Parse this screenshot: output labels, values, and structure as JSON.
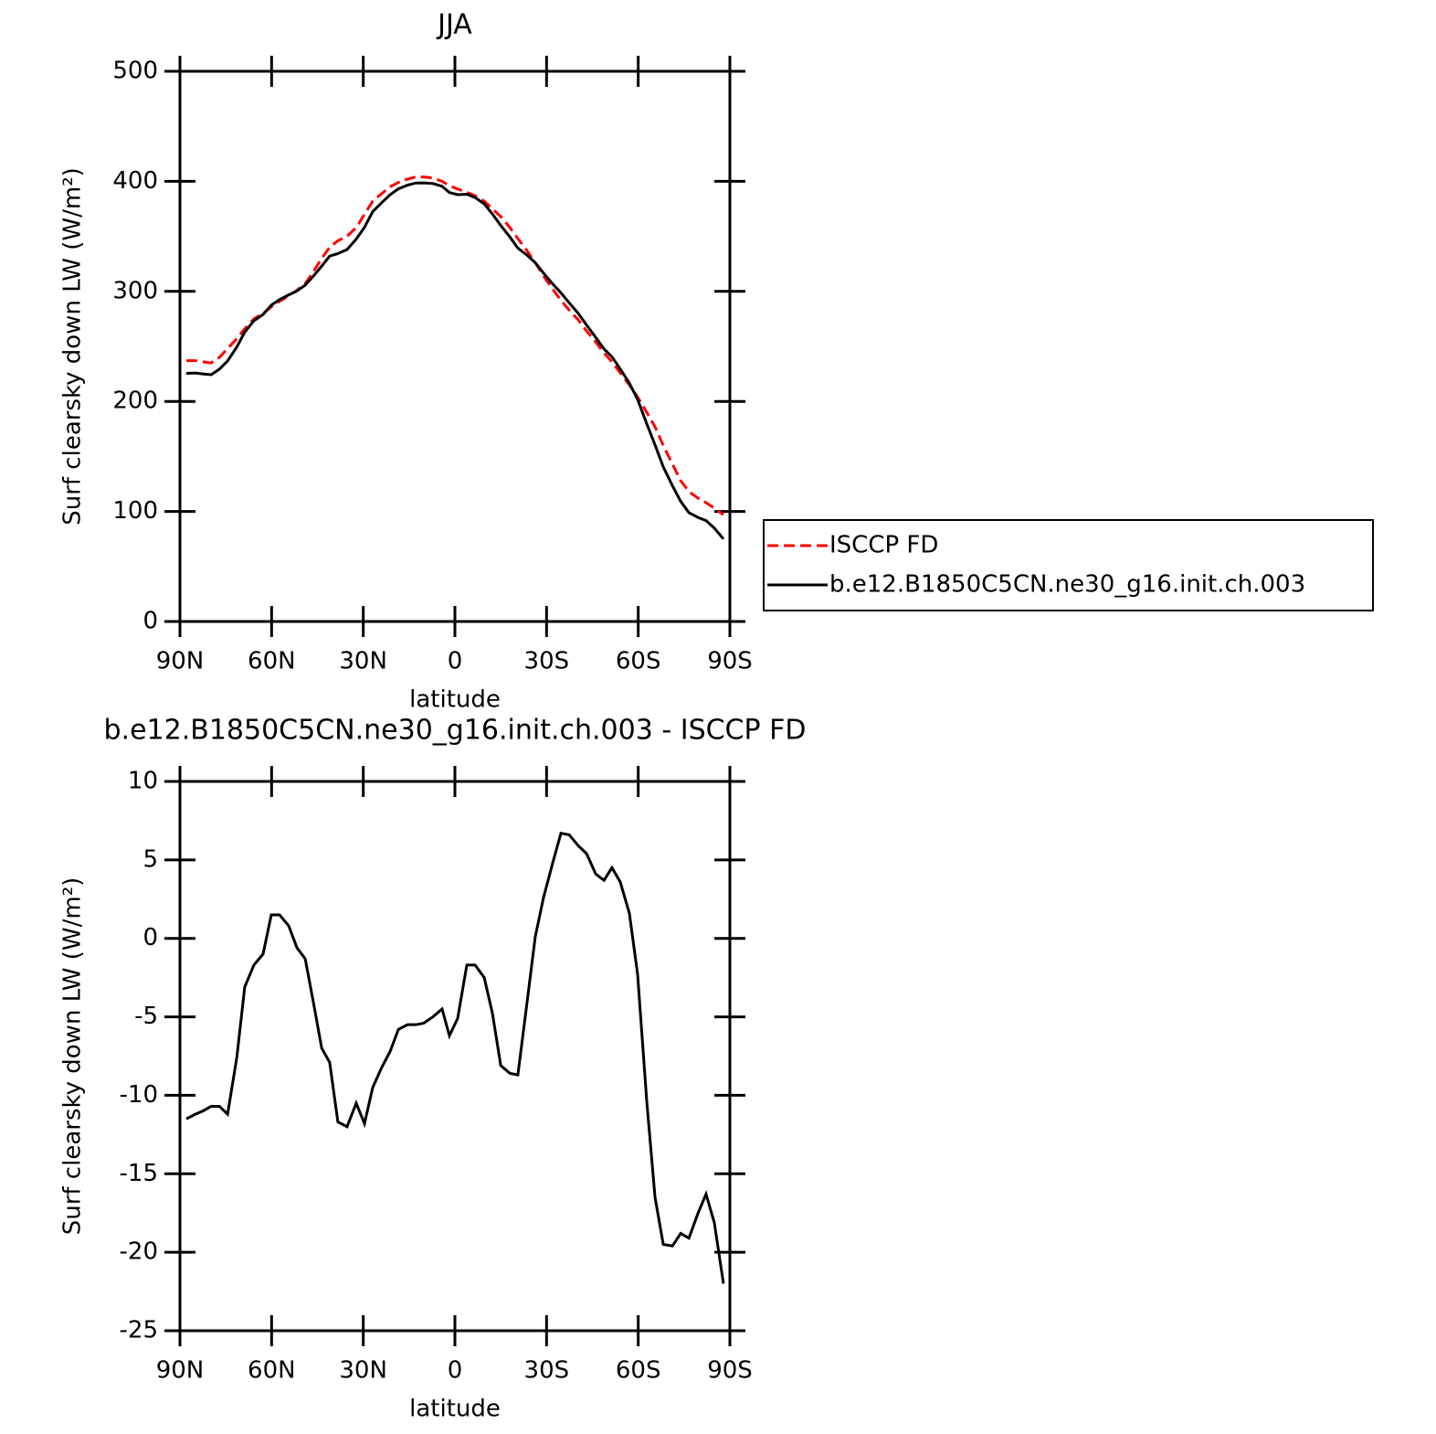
{
  "chart_data": [
    {
      "type": "line",
      "title": "JJA",
      "x_label": "latitude",
      "y_label": "Surf clearsky down LW (W/m²)",
      "x": [
        87.9,
        84.9,
        82.5,
        79.8,
        77.1,
        74.4,
        71.4,
        68.8,
        65.8,
        62.8,
        60.1,
        57.4,
        54.4,
        51.7,
        49.0,
        46.3,
        43.6,
        41.0,
        38.3,
        35.3,
        32.3,
        29.6,
        26.9,
        23.9,
        21.2,
        18.5,
        15.5,
        12.8,
        10.2,
        7.2,
        4.2,
        1.8,
        -0.9,
        -3.9,
        -6.6,
        -9.6,
        -12.3,
        -15.0,
        -18.0,
        -20.6,
        -23.6,
        -26.3,
        -29.0,
        -32.0,
        -34.7,
        -37.4,
        -40.4,
        -43.1,
        -46.1,
        -48.8,
        -51.4,
        -54.1,
        -57.1,
        -59.8,
        -62.8,
        -65.5,
        -68.2,
        -71.2,
        -73.9,
        -76.6,
        -79.6,
        -82.2,
        -84.9,
        -87.9
      ],
      "series": [
        {
          "name": "ISCCP FD",
          "color": "#ff0000",
          "linestyle": "dashed",
          "values": [
            237,
            237,
            236,
            235,
            240,
            248,
            257,
            266,
            275,
            280,
            286,
            291,
            296,
            301,
            307,
            318,
            330,
            340,
            346,
            350,
            358,
            370,
            382,
            389,
            395,
            399,
            402,
            404,
            404,
            403,
            400,
            396,
            393,
            390,
            387,
            382,
            375,
            368,
            358,
            348,
            337,
            326,
            314,
            302,
            292,
            283,
            274,
            264,
            254,
            244,
            236,
            226,
            215,
            204,
            190,
            177,
            160,
            143,
            128,
            118,
            112,
            108,
            103,
            97
          ]
        },
        {
          "name": "b.e12.B1850C5CN.ne30_g16.init.ch.003",
          "color": "#000000",
          "linestyle": "solid",
          "values": [
            225.5,
            225.8,
            225,
            224.3,
            229.3,
            236.8,
            249.4,
            262.9,
            273.3,
            279,
            287.5,
            292.5,
            296.8,
            300.4,
            305.7,
            313.9,
            323,
            332.1,
            334.3,
            338,
            347.5,
            358.2,
            372.5,
            380.8,
            387.8,
            393.2,
            396.5,
            398.5,
            398.6,
            398,
            395.5,
            389.8,
            387.9,
            388.3,
            385.3,
            379.5,
            370.2,
            359.9,
            349.4,
            339.3,
            332.9,
            326.1,
            316.6,
            306.8,
            298.7,
            289.6,
            279.9,
            269.4,
            258.1,
            247.7,
            240.5,
            229.6,
            216.6,
            201.7,
            179.6,
            160.5,
            140.5,
            123.4,
            109.2,
            98.9,
            94.5,
            91.7,
            84.9,
            75
          ]
        }
      ],
      "xlim": [
        90,
        -90
      ],
      "xticks": [
        {
          "value": 90,
          "label": "90N"
        },
        {
          "value": 60,
          "label": "60N"
        },
        {
          "value": 30,
          "label": "30N"
        },
        0,
        {
          "value": -30,
          "label": "30S"
        },
        {
          "value": -60,
          "label": "60S"
        },
        {
          "value": -90,
          "label": "90S"
        }
      ],
      "ylim": [
        0,
        500
      ],
      "yticks": [
        0,
        100,
        200,
        300,
        400,
        500
      ],
      "legend": "right"
    },
    {
      "type": "line",
      "title": "b.e12.B1850C5CN.ne30_g16.init.ch.003 - ISCCP FD",
      "x_label": "latitude",
      "y_label": "Surf clearsky down LW (W/m²)",
      "x": [
        87.9,
        84.9,
        82.5,
        79.8,
        77.1,
        74.4,
        71.4,
        68.8,
        65.8,
        62.8,
        60.1,
        57.4,
        54.4,
        51.7,
        49.0,
        46.3,
        43.6,
        41.0,
        38.3,
        35.3,
        32.3,
        29.6,
        26.9,
        23.9,
        21.2,
        18.5,
        15.5,
        12.8,
        10.2,
        7.2,
        4.2,
        1.8,
        -0.9,
        -3.9,
        -6.6,
        -9.6,
        -12.3,
        -15.0,
        -18.0,
        -20.6,
        -23.6,
        -26.3,
        -29.0,
        -32.0,
        -34.7,
        -37.4,
        -40.4,
        -43.1,
        -46.1,
        -48.8,
        -51.4,
        -54.1,
        -57.1,
        -59.8,
        -62.8,
        -65.5,
        -68.2,
        -71.2,
        -73.9,
        -76.6,
        -79.6,
        -82.2,
        -84.9,
        -87.9
      ],
      "series": [
        {
          "color": "#000000",
          "linestyle": "solid",
          "values": [
            -11.5,
            -11.2,
            -11.0,
            -10.7,
            -10.7,
            -11.2,
            -7.6,
            -3.1,
            -1.7,
            -1.0,
            1.5,
            1.5,
            0.8,
            -0.6,
            -1.3,
            -4.1,
            -7.0,
            -7.9,
            -11.7,
            -12.0,
            -10.5,
            -11.8,
            -9.5,
            -8.2,
            -7.2,
            -5.8,
            -5.5,
            -5.5,
            -5.4,
            -5.0,
            -4.5,
            -6.2,
            -5.1,
            -1.7,
            -1.7,
            -2.5,
            -4.8,
            -8.1,
            -8.6,
            -8.7,
            -4.1,
            0.1,
            2.6,
            4.8,
            6.7,
            6.6,
            5.9,
            5.4,
            4.1,
            3.7,
            4.5,
            3.6,
            1.6,
            -2.3,
            -10.4,
            -16.5,
            -19.5,
            -19.6,
            -18.8,
            -19.1,
            -17.5,
            -16.3,
            -18.1,
            -22.0
          ]
        }
      ],
      "xlim": [
        90,
        -90
      ],
      "xticks": [
        {
          "value": 90,
          "label": "90N"
        },
        {
          "value": 60,
          "label": "60N"
        },
        {
          "value": 30,
          "label": "30N"
        },
        0,
        {
          "value": -30,
          "label": "30S"
        },
        {
          "value": -60,
          "label": "60S"
        },
        {
          "value": -90,
          "label": "90S"
        }
      ],
      "ylim": [
        -25,
        10
      ],
      "yticks": [
        -25,
        -20,
        -15,
        -10,
        -5,
        0,
        5,
        10
      ]
    }
  ]
}
